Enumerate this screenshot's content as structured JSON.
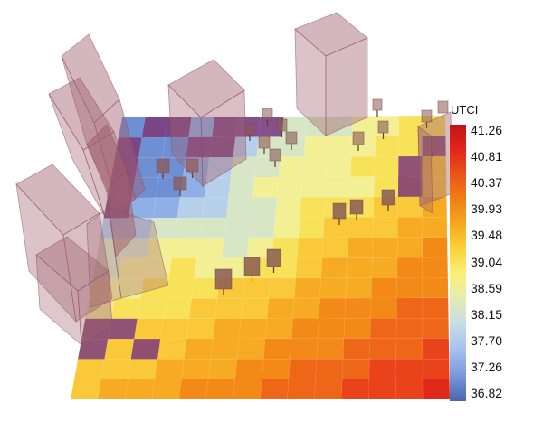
{
  "legend": {
    "title": "UTCI",
    "ticks": [
      "41.26",
      "40.81",
      "40.37",
      "39.93",
      "39.48",
      "39.04",
      "38.59",
      "38.15",
      "37.70",
      "37.26",
      "36.82"
    ]
  },
  "colors": {
    "hot": "#e2281b",
    "warm": "#f07a16",
    "mid": "#f7b62a",
    "yellow": "#f8e25a",
    "pale": "#e8eda5",
    "cool": "#bcd4ea",
    "blue": "#8fb0e6",
    "purple": "#7e3a7a",
    "building": "#a0606e",
    "tree": "#8a5a55"
  }
}
